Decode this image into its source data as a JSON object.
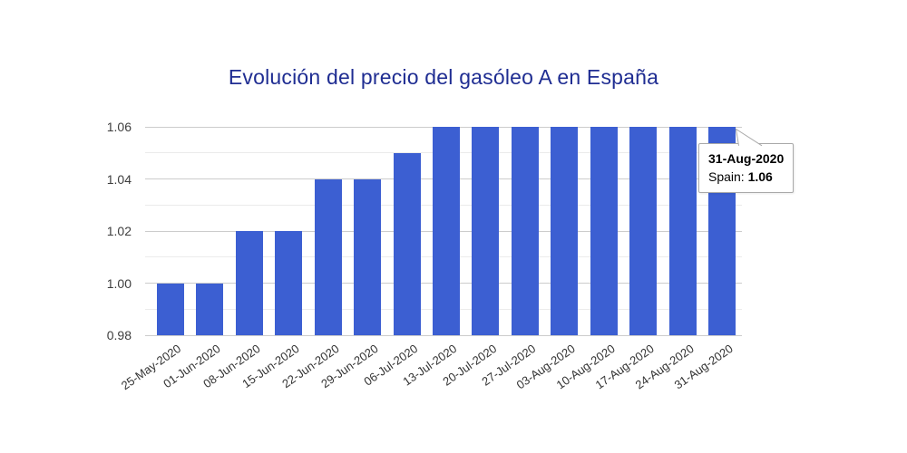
{
  "chart": {
    "title": "Evolución del precio del gasóleo A en España"
  },
  "chart_data": {
    "type": "bar",
    "title": "Evolución del precio del gasóleo A en España",
    "categories": [
      "25-May-2020",
      "01-Jun-2020",
      "08-Jun-2020",
      "15-Jun-2020",
      "22-Jun-2020",
      "29-Jun-2020",
      "06-Jul-2020",
      "13-Jul-2020",
      "20-Jul-2020",
      "27-Jul-2020",
      "03-Aug-2020",
      "10-Aug-2020",
      "17-Aug-2020",
      "24-Aug-2020",
      "31-Aug-2020"
    ],
    "series": [
      {
        "name": "Spain",
        "values": [
          1.0,
          1.0,
          1.02,
          1.02,
          1.04,
          1.04,
          1.05,
          1.06,
          1.06,
          1.06,
          1.06,
          1.06,
          1.06,
          1.06,
          1.06
        ]
      }
    ],
    "xlabel": "",
    "ylabel": "",
    "ylim": [
      0.98,
      1.06
    ],
    "y_ticks": [
      0.98,
      1.0,
      1.02,
      1.04,
      1.06
    ],
    "y_tick_labels": [
      "0.98",
      "1.00",
      "1.02",
      "1.04",
      "1.06"
    ],
    "y_minor_ticks": [
      0.99,
      1.01,
      1.03,
      1.05
    ],
    "grid": "on",
    "legend_position": "none",
    "bar_color": "#3c5fd2",
    "major_grid_color": "#cccccc",
    "minor_grid_color": "#ebebeb",
    "title_color": "#1f2d92",
    "axis_label_color": "#333333"
  },
  "tooltip": {
    "date": "31-Aug-2020",
    "series_label": "Spain:",
    "value": "1.06"
  }
}
